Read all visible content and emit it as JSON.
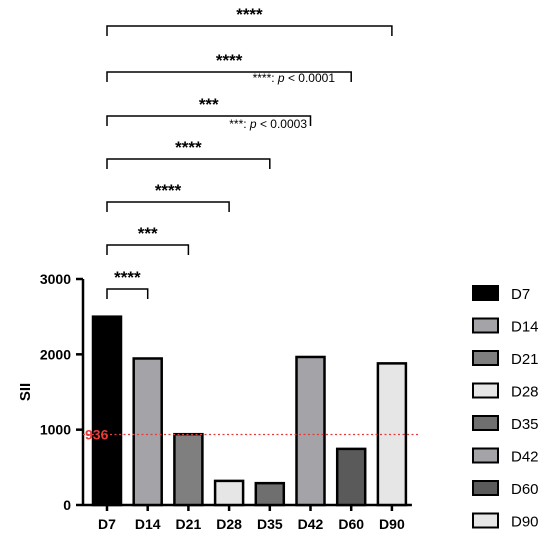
{
  "chart_data": {
    "type": "bar",
    "categories": [
      "D7",
      "D14",
      "D21",
      "D28",
      "D35",
      "D42",
      "D60",
      "D90"
    ],
    "values": [
      2500,
      1945,
      940,
      320,
      290,
      1965,
      745,
      1880
    ],
    "ylabel": "SII",
    "xlabel": "",
    "ylim": [
      0,
      3000
    ],
    "yticks": [
      0,
      1000,
      2000,
      3000
    ],
    "bar_colors": [
      "#000000",
      "#a3a3a8",
      "#7f7f7f",
      "#e6e6e6",
      "#6f6f6f",
      "#a3a3a8",
      "#5a5a5a",
      "#e6e6e6"
    ],
    "reference_line": {
      "value": 936,
      "label": "936",
      "color": "#e53b3b"
    },
    "legend": {
      "placement": "right",
      "entries": [
        "D7",
        "D14",
        "D21",
        "D28",
        "D35",
        "D42",
        "D60",
        "D90"
      ]
    },
    "comparisons": [
      {
        "from": "D7",
        "to": "D14",
        "stars": "****"
      },
      {
        "from": "D7",
        "to": "D21",
        "stars": "***"
      },
      {
        "from": "D7",
        "to": "D28",
        "stars": "****"
      },
      {
        "from": "D7",
        "to": "D35",
        "stars": "****"
      },
      {
        "from": "D7",
        "to": "D42",
        "stars": "***"
      },
      {
        "from": "D7",
        "to": "D60",
        "stars": "****"
      },
      {
        "from": "D7",
        "to": "D90",
        "stars": "****"
      }
    ],
    "significance_notes": [
      {
        "stars": "****",
        "p_symbol": "p",
        "text": " < 0.0001",
        "attached_to": "D7-D60"
      },
      {
        "stars": "***",
        "p_symbol": "p",
        "text": " < 0.0003",
        "attached_to": "D7-D42"
      }
    ]
  }
}
